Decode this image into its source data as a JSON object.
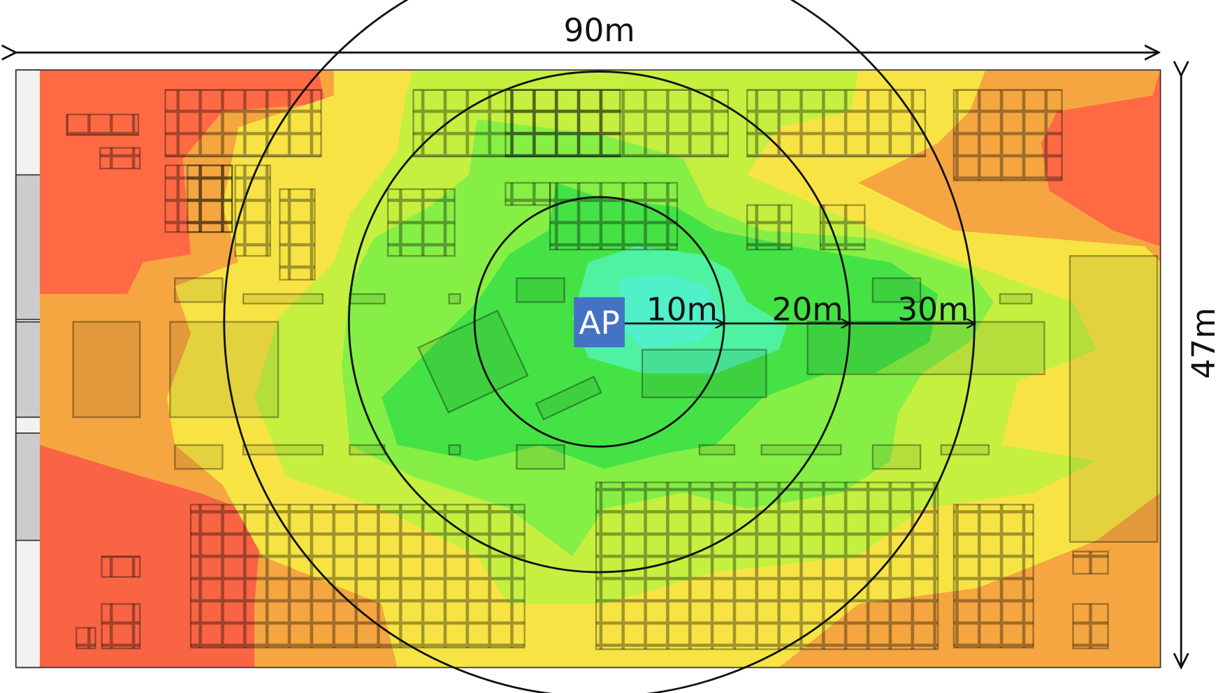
{
  "dimensions": {
    "width": "90m",
    "height": "47m"
  },
  "access_point": {
    "label": "AP"
  },
  "range_rings": [
    {
      "label": "10m"
    },
    {
      "label": "20m"
    },
    {
      "label": "30m"
    }
  ]
}
